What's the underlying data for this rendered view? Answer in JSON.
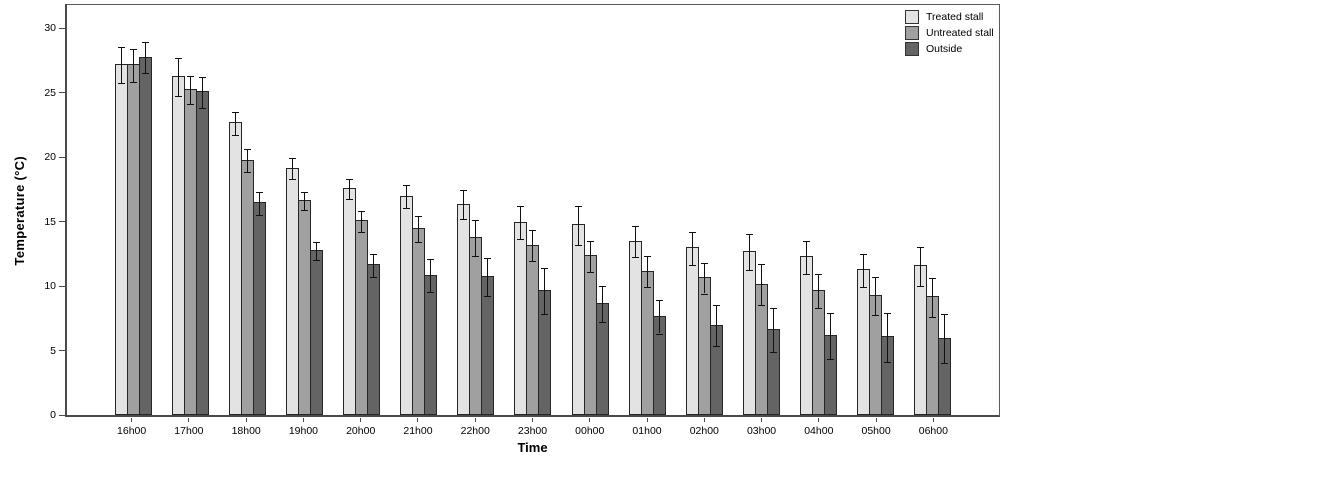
{
  "chart_data": {
    "type": "bar",
    "title": "",
    "xlabel": "Time",
    "ylabel": "Temperature (°C)",
    "categories": [
      "16h00",
      "17h00",
      "18h00",
      "19h00",
      "20h00",
      "21h00",
      "22h00",
      "23h00",
      "00h00",
      "01h00",
      "02h00",
      "03h00",
      "04h00",
      "05h00",
      "06h00"
    ],
    "series": [
      {
        "name": "Treated stall",
        "color": "#e3e3e3",
        "values": [
          27.2,
          26.3,
          22.7,
          19.2,
          17.6,
          17.0,
          16.4,
          15.0,
          14.8,
          13.5,
          13.0,
          12.7,
          12.3,
          11.3,
          11.6
        ],
        "errors": [
          1.4,
          1.5,
          0.9,
          0.8,
          0.8,
          0.9,
          1.1,
          1.3,
          1.5,
          1.2,
          1.3,
          1.4,
          1.3,
          1.3,
          1.5
        ]
      },
      {
        "name": "Untreated stall",
        "color": "#a0a0a0",
        "values": [
          27.2,
          25.3,
          19.8,
          16.7,
          15.1,
          14.5,
          13.8,
          13.2,
          12.4,
          11.2,
          10.7,
          10.2,
          9.7,
          9.3,
          9.2
        ],
        "errors": [
          1.3,
          1.1,
          0.9,
          0.7,
          0.8,
          1.0,
          1.4,
          1.2,
          1.2,
          1.2,
          1.2,
          1.6,
          1.3,
          1.5,
          1.5
        ]
      },
      {
        "name": "Outside",
        "color": "#646464",
        "values": [
          27.8,
          25.1,
          16.5,
          12.8,
          11.7,
          10.9,
          10.8,
          9.7,
          8.7,
          7.7,
          7.0,
          6.7,
          6.2,
          6.1,
          6.0
        ],
        "errors": [
          1.2,
          1.2,
          0.9,
          0.7,
          0.9,
          1.3,
          1.5,
          1.8,
          1.4,
          1.3,
          1.6,
          1.7,
          1.8,
          1.9,
          1.9
        ]
      }
    ],
    "ylim": [
      0,
      31.8
    ],
    "yticks": [
      0,
      5,
      10,
      15,
      20,
      25,
      30
    ],
    "grid": "off",
    "legend_position": "top-right",
    "error_bars": true
  },
  "colors": {
    "bar_border": "#262626",
    "axis": "#4a4a4a",
    "error_bar": "#111111",
    "background": "#ffffff"
  }
}
